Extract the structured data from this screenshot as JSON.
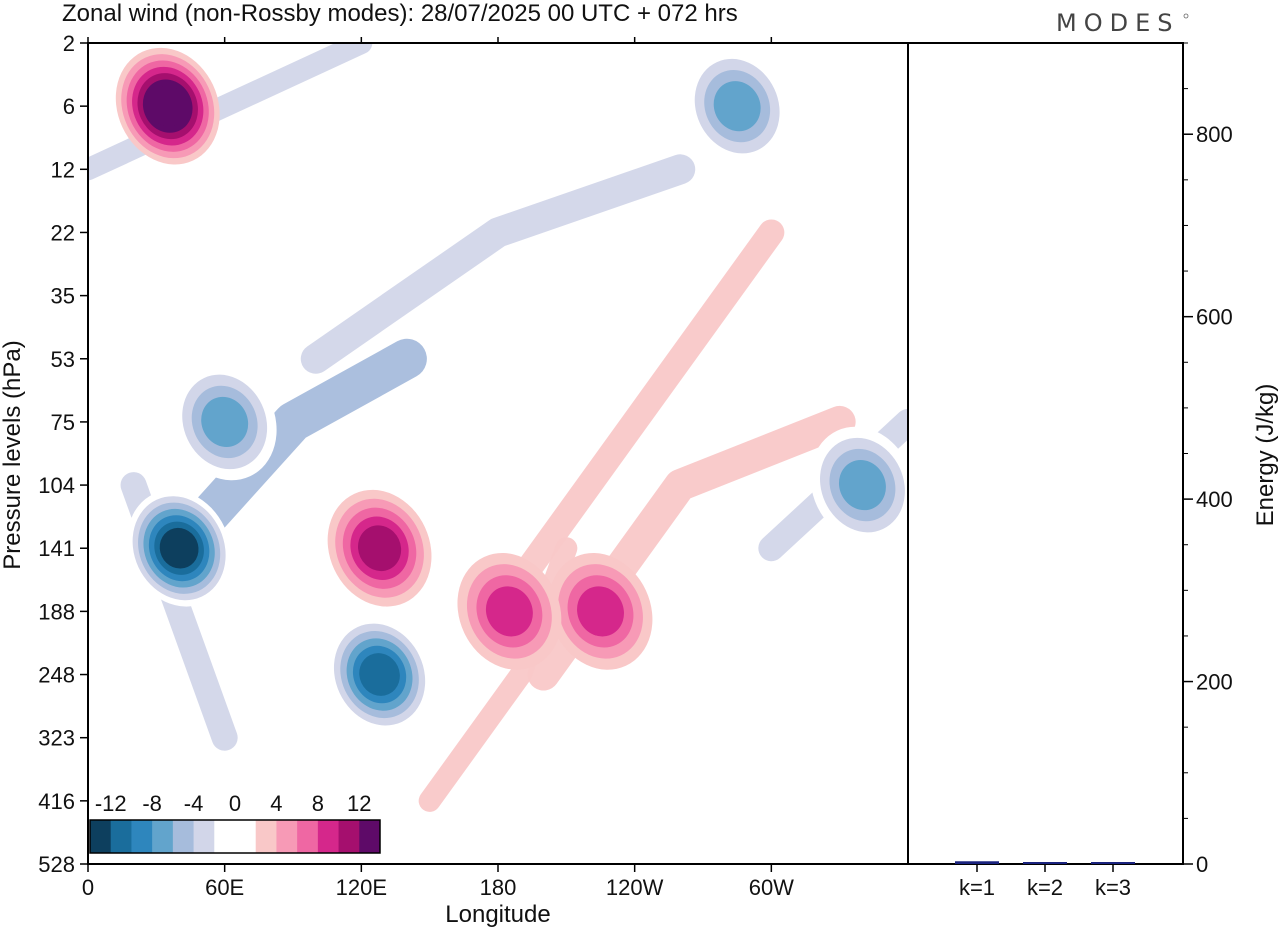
{
  "header": {
    "title": "Zonal wind (non-Rossby modes):  28/07/2025  00 UTC  + 072 hrs",
    "logo": "MODES"
  },
  "chart_data": [
    {
      "type": "heatmap",
      "title": "Zonal wind (non-Rossby modes):  28/07/2025  00 UTC  + 072 hrs",
      "xlabel": "Longitude",
      "ylabel": "Pressure levels (hPa)",
      "x_ticks": [
        "0",
        "60E",
        "120E",
        "180",
        "120W",
        "60W"
      ],
      "x_range_deg": [
        0,
        360
      ],
      "y_ticks": [
        "2",
        "6",
        "12",
        "22",
        "35",
        "53",
        "75",
        "104",
        "141",
        "188",
        "248",
        "323",
        "416",
        "528"
      ],
      "colorbar": {
        "tick_labels": [
          "-12",
          "-8",
          "-4",
          "0",
          "4",
          "8",
          "12"
        ],
        "colors": [
          "#0d3f5e",
          "#1a6d9c",
          "#2e86bd",
          "#62a4cc",
          "#a6bcdc",
          "#d2d6e9",
          "#ffffff",
          "#ffffff",
          "#f9c8c8",
          "#f79ab6",
          "#ef67a3",
          "#d5278b",
          "#a50f6e",
          "#5e0a68"
        ]
      },
      "features": [
        {
          "lon": 40,
          "lev": 141,
          "value": -14
        },
        {
          "lon": 128,
          "lev": 248,
          "value": -11
        },
        {
          "lon": 60,
          "lev": 75,
          "value": -8
        },
        {
          "lon": 128,
          "lev": 141,
          "value": 10
        },
        {
          "lon": 225,
          "lev": 188,
          "value": 8
        },
        {
          "lon": 35,
          "lev": 6,
          "value": 13
        },
        {
          "lon": 285,
          "lev": 6,
          "value": -8
        },
        {
          "lon": 340,
          "lev": 104,
          "value": -8
        },
        {
          "lon": 185,
          "lev": 188,
          "value": 7
        }
      ]
    },
    {
      "type": "bar",
      "title": "",
      "categories": [
        "k=1",
        "k=2",
        "k=3"
      ],
      "values": [
        3,
        1.5,
        1
      ],
      "ylabel": "Energy (J/kg)",
      "ylim": [
        0,
        900
      ],
      "y_ticks": [
        0,
        200,
        400,
        600,
        800
      ],
      "bar_color": "#1a237e"
    }
  ]
}
